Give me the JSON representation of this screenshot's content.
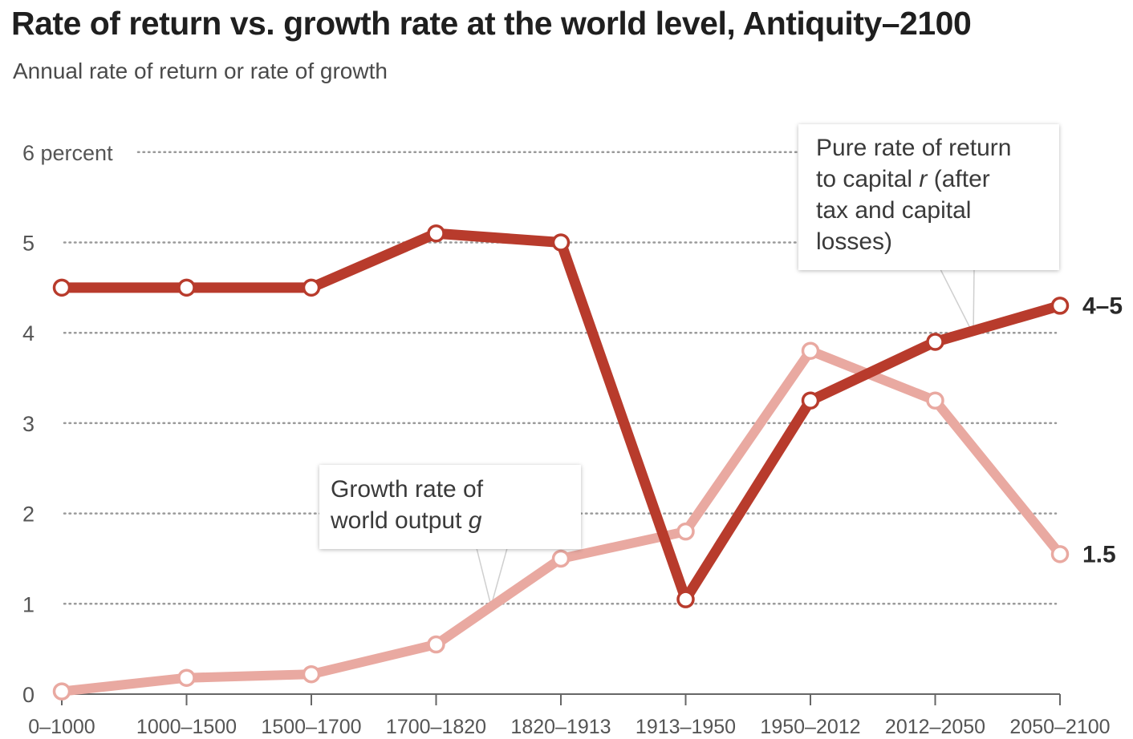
{
  "title": "Rate of return vs. growth rate at the world level, Antiquity–2100",
  "subtitle": "Annual rate of return or rate of growth",
  "colors": {
    "r_series": "#b83b2c",
    "g_series": "#e9a9a1",
    "grid": "#9a9a9a",
    "text": "#555555"
  },
  "chart_data": {
    "type": "line",
    "title": "Rate of return vs. growth rate at the world level, Antiquity–2100",
    "ylabel": "Annual rate of return or rate of growth",
    "ylim": [
      0,
      6
    ],
    "yticks": [
      {
        "value": 0,
        "label": "0"
      },
      {
        "value": 1,
        "label": "1"
      },
      {
        "value": 2,
        "label": "2"
      },
      {
        "value": 3,
        "label": "3"
      },
      {
        "value": 4,
        "label": "4"
      },
      {
        "value": 5,
        "label": "5"
      },
      {
        "value": 6,
        "label": "6 percent"
      }
    ],
    "grid": true,
    "categories": [
      "0–1000",
      "1000–1500",
      "1500–1700",
      "1700–1820",
      "1820–1913",
      "1913–1950",
      "1950–2012",
      "2012–2050",
      "2050–2100"
    ],
    "series": [
      {
        "name": "Pure rate of return to capital r (after tax and capital losses)",
        "color": "#b83b2c",
        "values": [
          4.5,
          4.5,
          4.5,
          5.1,
          5.0,
          1.05,
          3.25,
          3.9,
          4.3
        ],
        "end_label": "4–5"
      },
      {
        "name": "Growth rate of world output g",
        "color": "#e9a9a1",
        "values": [
          0.03,
          0.18,
          0.22,
          0.55,
          1.5,
          1.8,
          3.8,
          3.25,
          1.55
        ],
        "end_label": "1.5"
      }
    ],
    "annotations": {
      "r_callout": [
        "Pure rate of return",
        "to capital r (after",
        "tax and capital",
        "losses)"
      ],
      "g_callout": [
        "Growth rate of",
        "world output g"
      ]
    }
  }
}
